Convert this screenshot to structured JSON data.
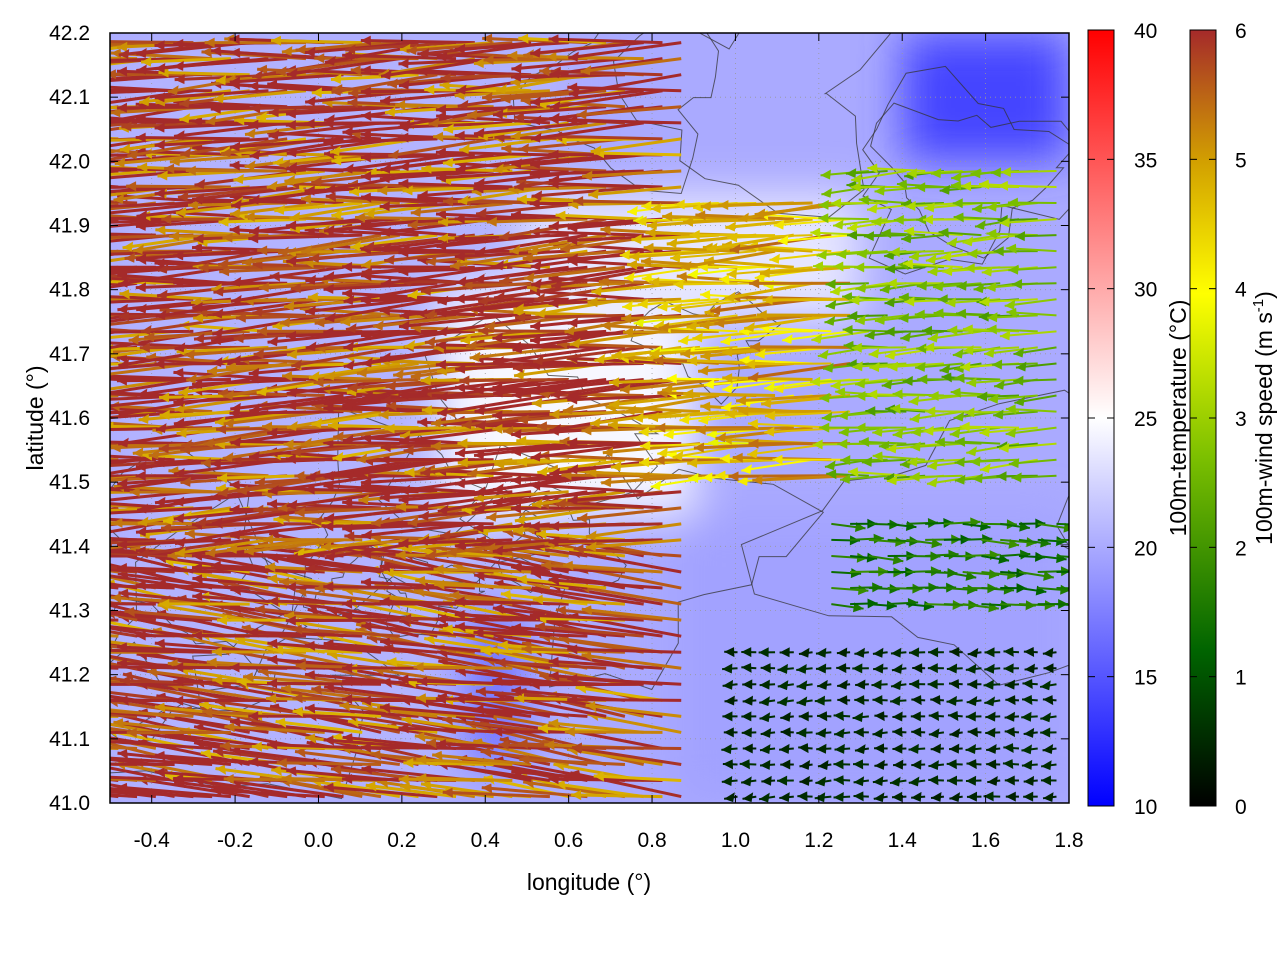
{
  "chart_data": {
    "type": "heatmap",
    "xlabel": "longitude (°)",
    "ylabel": "latitude (°)",
    "xlim": [
      -0.5,
      1.8
    ],
    "ylim": [
      41.0,
      42.2
    ],
    "x_ticks": [
      -0.4,
      -0.2,
      0.0,
      0.2,
      0.4,
      0.6,
      0.8,
      1.0,
      1.2,
      1.4,
      1.6,
      1.8
    ],
    "y_ticks": [
      41.0,
      41.1,
      41.2,
      41.3,
      41.4,
      41.5,
      41.6,
      41.7,
      41.8,
      41.9,
      42.0,
      42.1,
      42.2
    ],
    "x_tick_labels": [
      "-0.4",
      "-0.2",
      "0.0",
      "0.2",
      "0.4",
      "0.6",
      "0.8",
      "1.0",
      "1.2",
      "1.4",
      "1.6",
      "1.8"
    ],
    "y_tick_labels": [
      "41.0",
      "41.1",
      "41.2",
      "41.3",
      "41.4",
      "41.5",
      "41.6",
      "41.7",
      "41.8",
      "41.9",
      "42.0",
      "42.1",
      "42.2"
    ],
    "grid": true,
    "colorbars": [
      {
        "label": "100m-temperature (°C)",
        "range": [
          10,
          40
        ],
        "ticks": [
          10,
          15,
          20,
          25,
          30,
          35,
          40
        ],
        "tick_labels": [
          "10",
          "15",
          "20",
          "25",
          "30",
          "35",
          "40"
        ],
        "colors": [
          "#0000ff",
          "#ffffff",
          "#ff0000"
        ]
      },
      {
        "label_main": "100m-wind speed (m s",
        "label_sup": "-1",
        "label_end": ")",
        "range": [
          0,
          6
        ],
        "ticks": [
          0,
          1,
          2,
          3,
          4,
          5,
          6
        ],
        "tick_labels": [
          "0",
          "1",
          "2",
          "3",
          "4",
          "5",
          "6"
        ],
        "colors": [
          "#000000",
          "#006400",
          "#7cc000",
          "#ffff00",
          "#d2a000",
          "#a52a2a"
        ]
      }
    ],
    "temperature_field": {
      "description_levels": "approximate 100m temperature (°C)",
      "regions": [
        {
          "lon_range": [
            -0.5,
            0.6
          ],
          "lat_range": [
            41.0,
            42.2
          ],
          "value": 20.5
        },
        {
          "lon_range": [
            0.3,
            0.9
          ],
          "lat_range": [
            41.45,
            41.8
          ],
          "value": 24.5
        },
        {
          "lon_range": [
            0.5,
            1.3
          ],
          "lat_range": [
            41.75,
            41.95
          ],
          "value": 23.5
        },
        {
          "lon_range": [
            0.85,
            1.8
          ],
          "lat_range": [
            41.0,
            41.45
          ],
          "value": 19.5
        },
        {
          "lon_range": [
            1.4,
            1.8
          ],
          "lat_range": [
            42.0,
            42.2
          ],
          "value": 14.0
        },
        {
          "lon_range": [
            0.35,
            0.5
          ],
          "lat_range": [
            41.05,
            41.3
          ],
          "value": 16.5
        }
      ]
    },
    "wind_regime": [
      {
        "lon_range": [
          -0.5,
          0.9
        ],
        "lat_range": [
          41.0,
          42.2
        ],
        "direction": "from east",
        "speed_ms": 6.0
      },
      {
        "lon_range": [
          0.9,
          1.5
        ],
        "lat_range": [
          41.5,
          41.95
        ],
        "direction": "from east",
        "speed_ms": 4.5
      },
      {
        "lon_range": [
          1.3,
          1.8
        ],
        "lat_range": [
          41.5,
          42.0
        ],
        "direction": "from east",
        "speed_ms": 2.5
      },
      {
        "lon_range": [
          1.2,
          1.8
        ],
        "lat_range": [
          41.3,
          41.45
        ],
        "direction": "from west",
        "speed_ms": 1.5
      },
      {
        "lon_range": [
          1.0,
          1.8
        ],
        "lat_range": [
          41.0,
          41.25
        ],
        "direction": "from east",
        "speed_ms": 0.5
      }
    ]
  }
}
